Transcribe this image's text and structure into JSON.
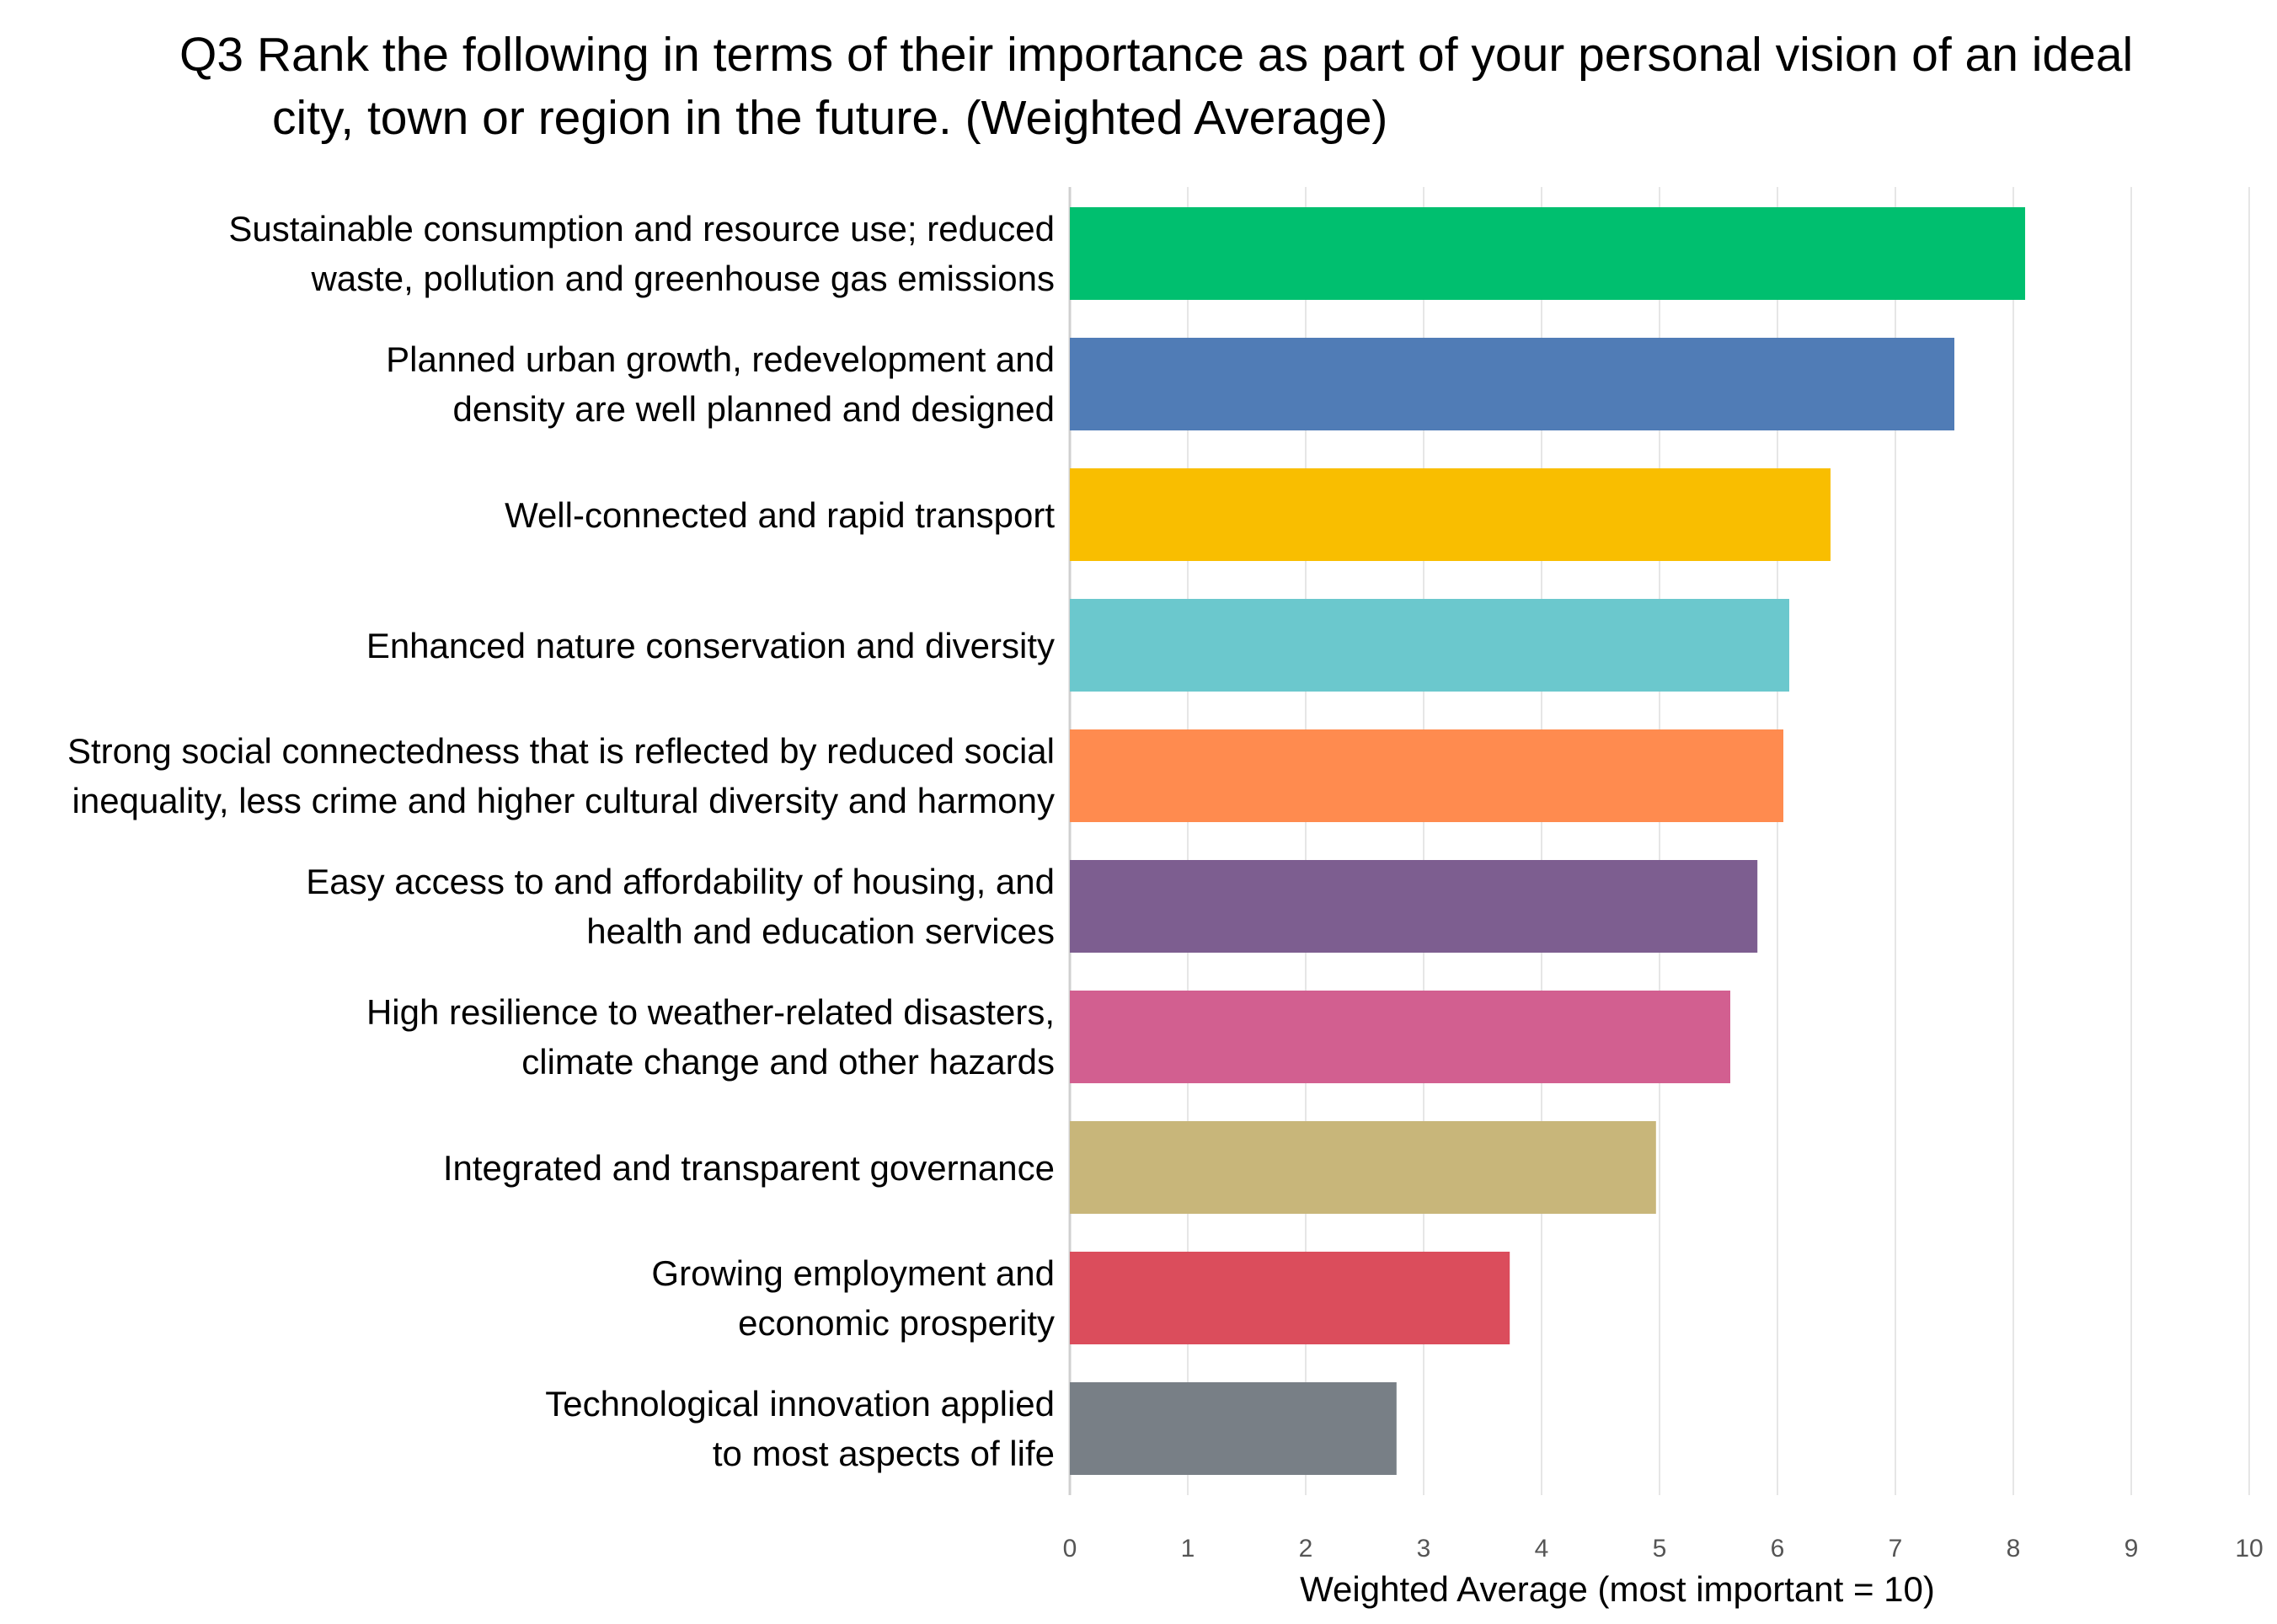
{
  "chart_data": {
    "type": "bar",
    "orientation": "horizontal",
    "title_line1": "Q3 Rank the following in terms of their importance as part of your personal vision of an ideal",
    "title_line2": "city, town or region in the future. (Weighted Average)",
    "xlabel": "Weighted Average (most important = 10)",
    "ylabel": "",
    "xlim": [
      0,
      10
    ],
    "xticks": [
      "0",
      "1",
      "2",
      "3",
      "4",
      "5",
      "6",
      "7",
      "8",
      "9",
      "10"
    ],
    "grid": true,
    "categories": [
      [
        "Sustainable consumption and resource use; reduced",
        "waste, pollution and greenhouse gas emissions"
      ],
      [
        "Planned urban growth, redevelopment and",
        "density are well planned and designed"
      ],
      [
        "Well-connected and rapid transport"
      ],
      [
        "Enhanced nature conservation and diversity"
      ],
      [
        "Strong social connectedness that is reflected by reduced social",
        "inequality, less crime and higher cultural diversity and harmony"
      ],
      [
        "Easy access to and affordability of housing, and",
        "health and education services"
      ],
      [
        "High resilience to weather-related disasters,",
        "climate change and other hazards"
      ],
      [
        "Integrated and transparent governance"
      ],
      [
        "Growing employment and",
        "economic prosperity"
      ],
      [
        "Technological innovation applied",
        "to most aspects of life"
      ]
    ],
    "values": [
      8.1,
      7.5,
      6.45,
      6.1,
      6.05,
      5.83,
      5.6,
      4.97,
      3.73,
      2.77
    ],
    "colors": [
      "#00BF6F",
      "#507CB6",
      "#F9BE00",
      "#6BC8CD",
      "#FF8B4F",
      "#7D5E90",
      "#D25F90",
      "#C8B67A",
      "#DB4D5C",
      "#787F86"
    ]
  }
}
